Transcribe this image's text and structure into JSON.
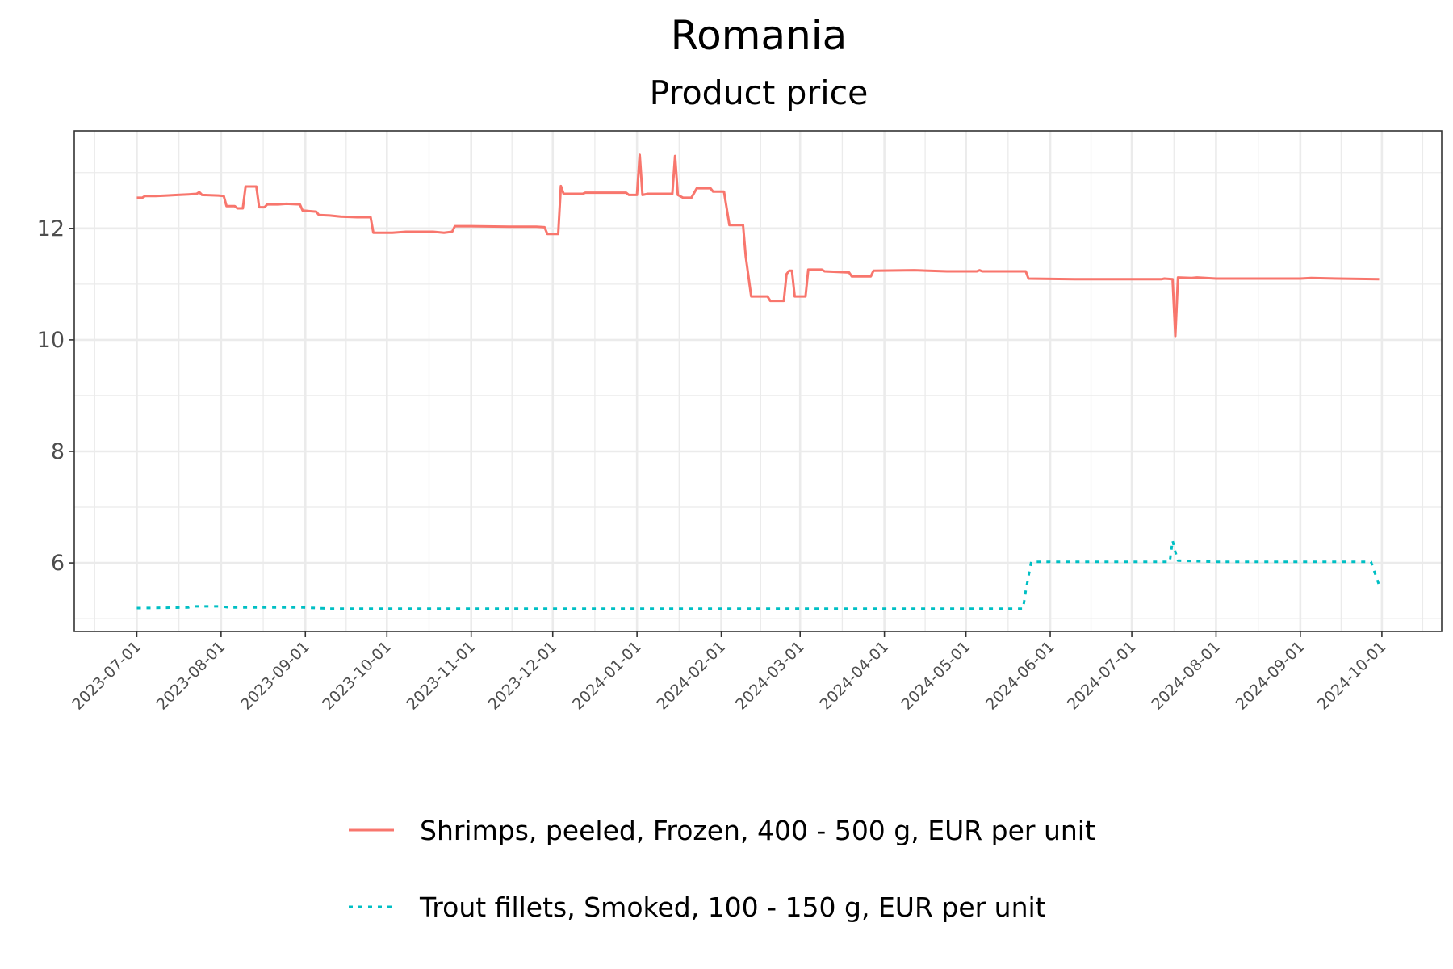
{
  "chart_data": {
    "type": "line",
    "title": "Romania",
    "subtitle": "Product price",
    "xlabel": "",
    "ylabel": "",
    "xlim": [
      "2023-06-08",
      "2024-10-23"
    ],
    "ylim": [
      4.77,
      13.75
    ],
    "y_ticks": [
      6,
      8,
      10,
      12
    ],
    "y_tick_labels": [
      "6",
      "8",
      "10",
      "12"
    ],
    "x_ticks": [
      "2023-07-01",
      "2023-08-01",
      "2023-09-01",
      "2023-10-01",
      "2023-11-01",
      "2023-12-01",
      "2024-01-01",
      "2024-02-01",
      "2024-03-01",
      "2024-04-01",
      "2024-05-01",
      "2024-06-01",
      "2024-07-01",
      "2024-08-01",
      "2024-09-01",
      "2024-10-01"
    ],
    "grid": true,
    "legend_position": "bottom",
    "series": [
      {
        "name": "Shrimps, peeled, Frozen, 400 - 500 g, EUR per unit",
        "color": "#F8766D",
        "dash": "solid",
        "points": [
          [
            "2023-07-01",
            12.55
          ],
          [
            "2023-07-03",
            12.55
          ],
          [
            "2023-07-04",
            12.58
          ],
          [
            "2023-07-08",
            12.58
          ],
          [
            "2023-07-12",
            12.59
          ],
          [
            "2023-07-16",
            12.6
          ],
          [
            "2023-07-20",
            12.61
          ],
          [
            "2023-07-23",
            12.62
          ],
          [
            "2023-07-24",
            12.65
          ],
          [
            "2023-07-25",
            12.6
          ],
          [
            "2023-07-31",
            12.59
          ],
          [
            "2023-08-02",
            12.58
          ],
          [
            "2023-08-03",
            12.4
          ],
          [
            "2023-08-06",
            12.4
          ],
          [
            "2023-08-07",
            12.36
          ],
          [
            "2023-08-09",
            12.36
          ],
          [
            "2023-08-10",
            12.75
          ],
          [
            "2023-08-14",
            12.75
          ],
          [
            "2023-08-15",
            12.38
          ],
          [
            "2023-08-17",
            12.38
          ],
          [
            "2023-08-18",
            12.43
          ],
          [
            "2023-08-22",
            12.43
          ],
          [
            "2023-08-25",
            12.44
          ],
          [
            "2023-08-30",
            12.43
          ],
          [
            "2023-08-31",
            12.32
          ],
          [
            "2023-09-05",
            12.3
          ],
          [
            "2023-09-06",
            12.24
          ],
          [
            "2023-09-10",
            12.23
          ],
          [
            "2023-09-14",
            12.21
          ],
          [
            "2023-09-20",
            12.2
          ],
          [
            "2023-09-25",
            12.2
          ],
          [
            "2023-09-26",
            11.92
          ],
          [
            "2023-10-03",
            11.92
          ],
          [
            "2023-10-08",
            11.94
          ],
          [
            "2023-10-18",
            11.94
          ],
          [
            "2023-10-22",
            11.92
          ],
          [
            "2023-10-25",
            11.94
          ],
          [
            "2023-10-26",
            12.04
          ],
          [
            "2023-11-01",
            12.04
          ],
          [
            "2023-11-15",
            12.03
          ],
          [
            "2023-11-25",
            12.03
          ],
          [
            "2023-11-28",
            12.02
          ],
          [
            "2023-11-29",
            11.9
          ],
          [
            "2023-12-03",
            11.9
          ],
          [
            "2023-12-04",
            12.76
          ],
          [
            "2023-12-05",
            12.62
          ],
          [
            "2023-12-12",
            12.62
          ],
          [
            "2023-12-13",
            12.64
          ],
          [
            "2023-12-28",
            12.64
          ],
          [
            "2023-12-29",
            12.6
          ],
          [
            "2024-01-01",
            12.6
          ],
          [
            "2024-01-02",
            13.32
          ],
          [
            "2024-01-03",
            12.6
          ],
          [
            "2024-01-05",
            12.62
          ],
          [
            "2024-01-14",
            12.62
          ],
          [
            "2024-01-15",
            13.3
          ],
          [
            "2024-01-16",
            12.6
          ],
          [
            "2024-01-18",
            12.55
          ],
          [
            "2024-01-21",
            12.55
          ],
          [
            "2024-01-23",
            12.72
          ],
          [
            "2024-01-28",
            12.72
          ],
          [
            "2024-01-29",
            12.66
          ],
          [
            "2024-02-02",
            12.66
          ],
          [
            "2024-02-04",
            12.06
          ],
          [
            "2024-02-09",
            12.06
          ],
          [
            "2024-02-10",
            11.5
          ],
          [
            "2024-02-12",
            10.78
          ],
          [
            "2024-02-18",
            10.78
          ],
          [
            "2024-02-19",
            10.7
          ],
          [
            "2024-02-24",
            10.7
          ],
          [
            "2024-02-25",
            11.18
          ],
          [
            "2024-02-26",
            11.24
          ],
          [
            "2024-02-27",
            11.24
          ],
          [
            "2024-02-28",
            10.78
          ],
          [
            "2024-03-03",
            10.78
          ],
          [
            "2024-03-04",
            11.26
          ],
          [
            "2024-03-09",
            11.26
          ],
          [
            "2024-03-10",
            11.23
          ],
          [
            "2024-03-19",
            11.21
          ],
          [
            "2024-03-20",
            11.14
          ],
          [
            "2024-03-27",
            11.14
          ],
          [
            "2024-03-28",
            11.24
          ],
          [
            "2024-04-12",
            11.25
          ],
          [
            "2024-04-24",
            11.23
          ],
          [
            "2024-05-05",
            11.23
          ],
          [
            "2024-05-06",
            11.25
          ],
          [
            "2024-05-07",
            11.23
          ],
          [
            "2024-05-23",
            11.23
          ],
          [
            "2024-05-24",
            11.1
          ],
          [
            "2024-06-10",
            11.09
          ],
          [
            "2024-07-12",
            11.09
          ],
          [
            "2024-07-13",
            11.1
          ],
          [
            "2024-07-16",
            11.09
          ],
          [
            "2024-07-17",
            10.07
          ],
          [
            "2024-07-18",
            11.12
          ],
          [
            "2024-07-23",
            11.11
          ],
          [
            "2024-07-25",
            11.12
          ],
          [
            "2024-08-01",
            11.1
          ],
          [
            "2024-09-01",
            11.1
          ],
          [
            "2024-09-05",
            11.11
          ],
          [
            "2024-09-15",
            11.1
          ],
          [
            "2024-09-30",
            11.09
          ]
        ]
      },
      {
        "name": "Trout fillets, Smoked, 100 - 150 g, EUR per unit",
        "color": "#00BFC4",
        "dash": "dotted",
        "points": [
          [
            "2023-07-01",
            5.19
          ],
          [
            "2023-07-20",
            5.2
          ],
          [
            "2023-07-21",
            5.22
          ],
          [
            "2023-08-01",
            5.22
          ],
          [
            "2023-08-04",
            5.2
          ],
          [
            "2023-08-31",
            5.2
          ],
          [
            "2023-09-10",
            5.18
          ],
          [
            "2023-12-01",
            5.18
          ],
          [
            "2024-05-22",
            5.18
          ],
          [
            "2024-05-23",
            5.5
          ],
          [
            "2024-05-25",
            6.02
          ],
          [
            "2024-07-15",
            6.02
          ],
          [
            "2024-07-16",
            6.4
          ],
          [
            "2024-07-17",
            6.2
          ],
          [
            "2024-07-18",
            6.04
          ],
          [
            "2024-08-01",
            6.02
          ],
          [
            "2024-09-27",
            6.02
          ],
          [
            "2024-09-30",
            5.6
          ]
        ]
      }
    ]
  }
}
